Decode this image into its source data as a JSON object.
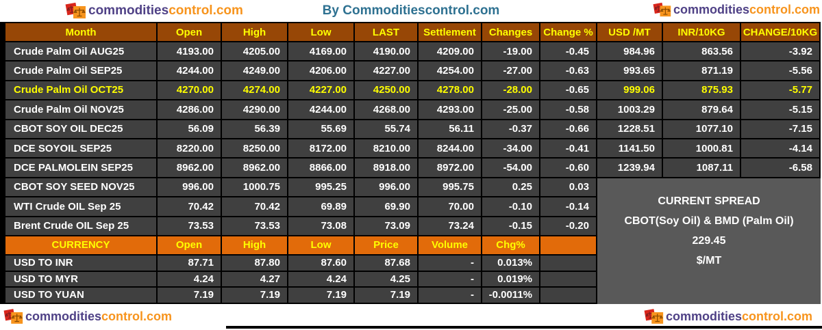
{
  "header": {
    "title": "By Commoditiescontrol.com"
  },
  "logo": {
    "part1": "commodities",
    "part2": "control.com"
  },
  "futures_table": {
    "columns": [
      "Month",
      "Open",
      "High",
      "Low",
      "LAST",
      "Settlement",
      "Changes",
      "Change %",
      "USD /MT",
      "INR/10KG",
      "CHANGE/10KG"
    ],
    "rows": [
      {
        "month": "Crude Palm Oil AUG25",
        "open": "4193.00",
        "high": "4205.00",
        "low": "4169.00",
        "last": "4190.00",
        "settlement": "4209.00",
        "changes": "-19.00",
        "change_pct": "-0.45",
        "usd_mt": "984.96",
        "inr_10kg": "863.56",
        "change_10kg": "-3.92",
        "highlight": false
      },
      {
        "month": "Crude Palm Oil SEP25",
        "open": "4244.00",
        "high": "4249.00",
        "low": "4206.00",
        "last": "4227.00",
        "settlement": "4254.00",
        "changes": "-27.00",
        "change_pct": "-0.63",
        "usd_mt": "993.65",
        "inr_10kg": "871.19",
        "change_10kg": "-5.56",
        "highlight": false
      },
      {
        "month": "Crude Palm Oil OCT25",
        "open": "4270.00",
        "high": "4274.00",
        "low": "4227.00",
        "last": "4250.00",
        "settlement": "4278.00",
        "changes": "-28.00",
        "change_pct": "-0.65",
        "usd_mt": "999.06",
        "inr_10kg": "875.93",
        "change_10kg": "-5.77",
        "highlight": true
      },
      {
        "month": "Crude Palm Oil NOV25",
        "open": "4286.00",
        "high": "4290.00",
        "low": "4244.00",
        "last": "4268.00",
        "settlement": "4293.00",
        "changes": "-25.00",
        "change_pct": "-0.58",
        "usd_mt": "1003.29",
        "inr_10kg": "879.64",
        "change_10kg": "-5.15",
        "highlight": false
      },
      {
        "month": "CBOT SOY OIL DEC25",
        "open": "56.09",
        "high": "56.39",
        "low": "55.69",
        "last": "55.74",
        "settlement": "56.11",
        "changes": "-0.37",
        "change_pct": "-0.66",
        "usd_mt": "1228.51",
        "inr_10kg": "1077.10",
        "change_10kg": "-7.15",
        "highlight": false
      },
      {
        "month": "DCE SOYOIL SEP25",
        "open": "8220.00",
        "high": "8250.00",
        "low": "8172.00",
        "last": "8210.00",
        "settlement": "8244.00",
        "changes": "-34.00",
        "change_pct": "-0.41",
        "usd_mt": "1141.50",
        "inr_10kg": "1000.81",
        "change_10kg": "-4.14",
        "highlight": false
      },
      {
        "month": "DCE PALMOLEIN SEP25",
        "open": "8962.00",
        "high": "8962.00",
        "low": "8866.00",
        "last": "8918.00",
        "settlement": "8972.00",
        "changes": "-54.00",
        "change_pct": "-0.60",
        "usd_mt": "1239.94",
        "inr_10kg": "1087.11",
        "change_10kg": "-6.58",
        "highlight": false
      },
      {
        "month": "CBOT SOY SEED NOV25",
        "open": "996.00",
        "high": "1000.75",
        "low": "995.25",
        "last": "996.00",
        "settlement": "995.75",
        "changes": "0.25",
        "change_pct": "0.03",
        "usd_mt": "",
        "inr_10kg": "",
        "change_10kg": "",
        "highlight": false
      },
      {
        "month": "WTI Crude OIL Sep 25",
        "open": "70.42",
        "high": "70.42",
        "low": "69.89",
        "last": "69.90",
        "settlement": "70.00",
        "changes": "-0.10",
        "change_pct": "-0.14",
        "usd_mt": "",
        "inr_10kg": "",
        "change_10kg": "",
        "highlight": false
      },
      {
        "month": "Brent Crude OIL Sep 25",
        "open": "73.53",
        "high": "73.53",
        "low": "73.08",
        "last": "73.09",
        "settlement": "73.24",
        "changes": "-0.15",
        "change_pct": "-0.20",
        "usd_mt": "",
        "inr_10kg": "",
        "change_10kg": "",
        "highlight": false
      }
    ]
  },
  "currency_table": {
    "columns": [
      "CURRENCY",
      "Open",
      "High",
      "Low",
      "Price",
      "Volume",
      "Chg%"
    ],
    "rows": [
      {
        "name": "USD TO INR",
        "open": "87.71",
        "high": "87.80",
        "low": "87.60",
        "price": "87.68",
        "volume": "-",
        "chg_pct": "0.013%"
      },
      {
        "name": "USD TO MYR",
        "open": "4.24",
        "high": "4.27",
        "low": "4.24",
        "price": "4.25",
        "volume": "-",
        "chg_pct": "0.019%"
      },
      {
        "name": "USD TO YUAN",
        "open": "7.19",
        "high": "7.19",
        "low": "7.19",
        "price": "7.19",
        "volume": "-",
        "chg_pct": "-0.0011%"
      }
    ]
  },
  "spread_panel": {
    "line1": "CURRENT SPREAD",
    "line2": "CBOT(Soy Oil) & BMD (Palm Oil)",
    "value": "229.45",
    "unit": "$/MT"
  },
  "colors": {
    "header_bg": "#974706",
    "currency_header_bg": "#E26B0A",
    "row_bg": "#404040",
    "panel_bg": "#595959",
    "yellow": "#FFFF00",
    "title_color": "#2E7191",
    "logo_purple": "#4F4186",
    "logo_orange": "#F7941D",
    "logo_red": "#D9261C"
  }
}
